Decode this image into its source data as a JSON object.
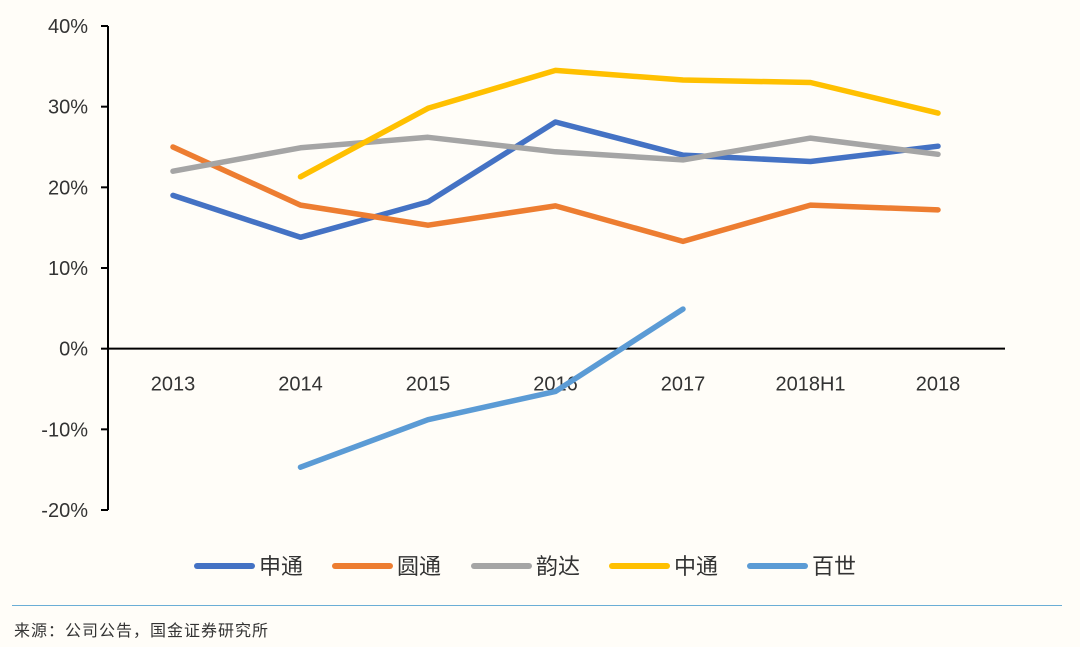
{
  "chart_data": {
    "type": "line",
    "title": "",
    "xlabel": "",
    "ylabel": "",
    "categories": [
      "2013",
      "2014",
      "2015",
      "2016",
      "2017",
      "2018H1",
      "2018"
    ],
    "ylim": [
      -20,
      40
    ],
    "yticks": [
      40,
      30,
      20,
      10,
      0,
      -10,
      -20
    ],
    "ytick_labels": [
      "40%",
      "30%",
      "20%",
      "10%",
      "0%",
      "-10%",
      "-20%"
    ],
    "grid": false,
    "legend_position": "bottom",
    "series": [
      {
        "name": "申通",
        "color": "#4472c4",
        "values": [
          19,
          13.8,
          18.2,
          28.1,
          24,
          23.2,
          25.1
        ]
      },
      {
        "name": "圆通",
        "color": "#ed7d31",
        "values": [
          25,
          17.8,
          15.3,
          17.7,
          13.3,
          17.8,
          17.2
        ]
      },
      {
        "name": "韵达",
        "color": "#a5a5a5",
        "values": [
          22,
          24.9,
          26.2,
          24.4,
          23.4,
          26.1,
          24.1
        ]
      },
      {
        "name": "中通",
        "color": "#ffc000",
        "values": [
          null,
          21.3,
          29.8,
          34.5,
          33.3,
          33,
          29.2
        ]
      },
      {
        "name": "百世",
        "color": "#5b9bd5",
        "values": [
          null,
          -14.7,
          -8.8,
          -5.3,
          4.9,
          null,
          null
        ]
      }
    ]
  },
  "source": "来源：公司公告，国金证券研究所"
}
